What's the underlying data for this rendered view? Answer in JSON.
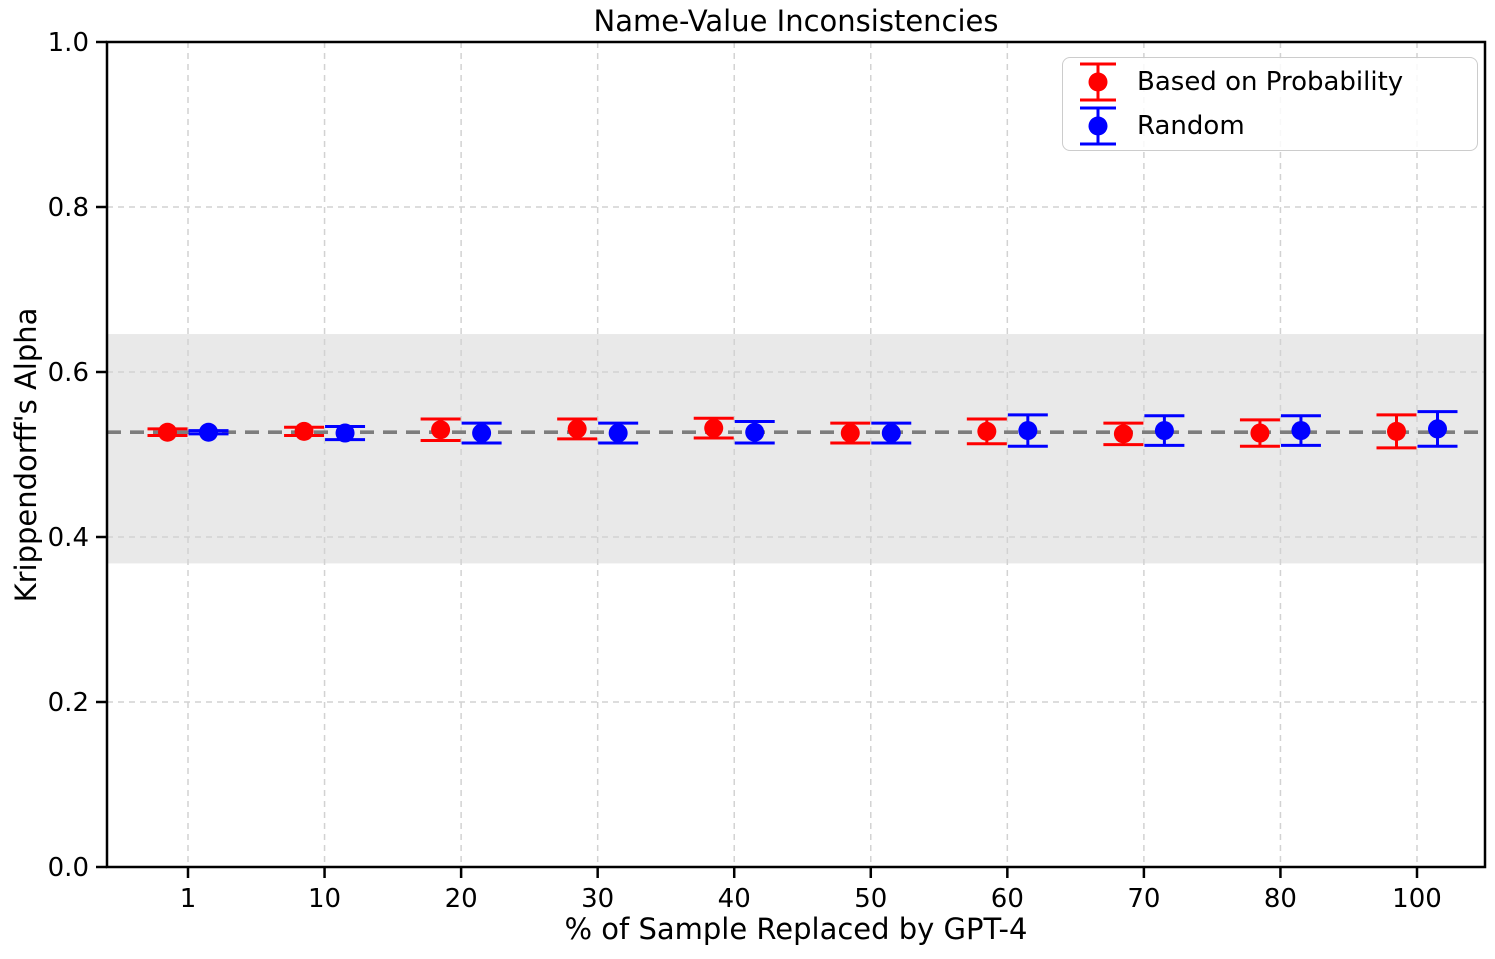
{
  "colors": {
    "red": "#ff0000",
    "blue": "#0000ff",
    "reference_line": "#7d7d7d",
    "band_fill": "#e9e9e9",
    "grid": "#d2d2d2",
    "axis": "#000000",
    "legend_border": "#cccccc"
  },
  "chart_data": {
    "type": "scatter",
    "title": "Name-Value Inconsistencies",
    "xlabel": "% of Sample Replaced by GPT-4",
    "ylabel": "Krippendorff's Alpha",
    "categories": [
      1,
      10,
      20,
      30,
      40,
      50,
      60,
      70,
      80,
      100
    ],
    "xtick_labels": [
      "1",
      "10",
      "20",
      "30",
      "40",
      "50",
      "60",
      "70",
      "80",
      "100"
    ],
    "ytick_values": [
      0.0,
      0.2,
      0.4,
      0.6,
      0.8,
      1.0
    ],
    "ytick_labels": [
      "0.0",
      "0.2",
      "0.4",
      "0.6",
      "0.8",
      "1.0"
    ],
    "ylim": [
      0.0,
      1.0
    ],
    "grid": true,
    "legend_position": "upper right",
    "reference_line": {
      "y": 0.527,
      "style": "dashed",
      "color": "gray"
    },
    "shaded_band": {
      "ymin": 0.368,
      "ymax": 0.646,
      "color": "gray"
    },
    "series": [
      {
        "name": "Based on Probability",
        "color": "#ff0000",
        "marker": "circle",
        "values": [
          0.527,
          0.528,
          0.53,
          0.531,
          0.532,
          0.526,
          0.528,
          0.525,
          0.526,
          0.528
        ],
        "errors": [
          0.004,
          0.005,
          0.013,
          0.012,
          0.012,
          0.012,
          0.015,
          0.013,
          0.016,
          0.02
        ]
      },
      {
        "name": "Random",
        "color": "#0000ff",
        "marker": "circle",
        "values": [
          0.527,
          0.526,
          0.526,
          0.526,
          0.527,
          0.526,
          0.529,
          0.529,
          0.529,
          0.531
        ],
        "errors": [
          0.002,
          0.008,
          0.012,
          0.012,
          0.013,
          0.012,
          0.019,
          0.018,
          0.018,
          0.021
        ]
      }
    ]
  }
}
